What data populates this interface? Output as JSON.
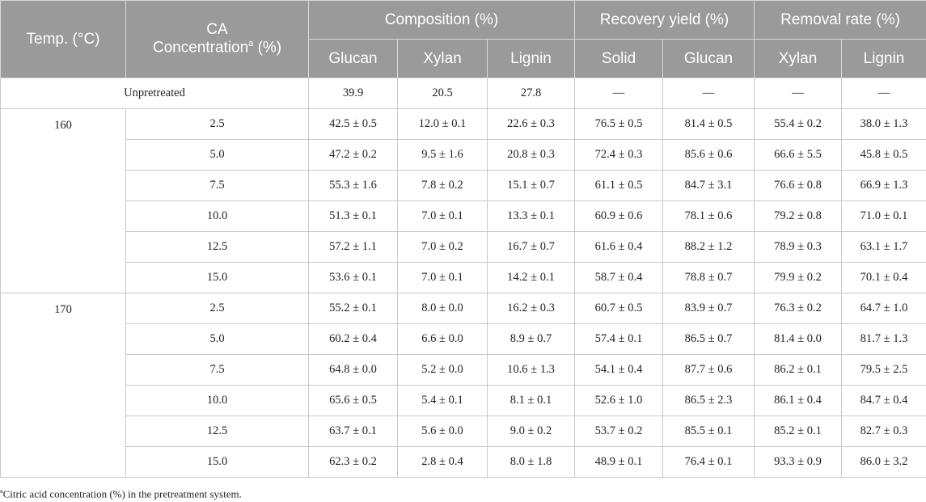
{
  "header": {
    "temp": "Temp. (°C)",
    "ca": "CA",
    "ca2": "Concentration",
    "ca_sup": "a",
    "ca_unit": " (%)",
    "composition": "Composition (%)",
    "recovery": "Recovery yield (%)",
    "removal": "Removal rate (%)",
    "sub": [
      "Glucan",
      "Xylan",
      "Lignin",
      "Solid",
      "Glucan",
      "Xylan",
      "Lignin"
    ]
  },
  "unpretreated": {
    "label": "Unpretreated",
    "values": [
      "39.9",
      "20.5",
      "27.8",
      "—",
      "—",
      "—",
      "—"
    ]
  },
  "groups": [
    {
      "temp": "160",
      "rows": [
        {
          "conc": "2.5",
          "values": [
            "42.5 ± 0.5",
            "12.0 ± 0.1",
            "22.6 ± 0.3",
            "76.5 ± 0.5",
            "81.4 ± 0.5",
            "55.4 ± 0.2",
            "38.0 ± 1.3"
          ]
        },
        {
          "conc": "5.0",
          "values": [
            "47.2 ± 0.2",
            "9.5 ± 1.6",
            "20.8 ± 0.3",
            "72.4 ± 0.3",
            "85.6 ± 0.6",
            "66.6 ± 5.5",
            "45.8 ± 0.5"
          ]
        },
        {
          "conc": "7.5",
          "values": [
            "55.3 ± 1.6",
            "7.8 ± 0.2",
            "15.1 ± 0.7",
            "61.1 ± 0.5",
            "84.7 ± 3.1",
            "76.6 ± 0.8",
            "66.9 ± 1.3"
          ]
        },
        {
          "conc": "10.0",
          "values": [
            "51.3 ± 0.1",
            "7.0 ± 0.1",
            "13.3 ± 0.1",
            "60.9 ± 0.6",
            "78.1 ± 0.6",
            "79.2 ± 0.8",
            "71.0 ± 0.1"
          ]
        },
        {
          "conc": "12.5",
          "values": [
            "57.2 ± 1.1",
            "7.0 ± 0.2",
            "16.7 ± 0.7",
            "61.6 ± 0.4",
            "88.2 ± 1.2",
            "78.9 ± 0.3",
            "63.1 ± 1.7"
          ]
        },
        {
          "conc": "15.0",
          "values": [
            "53.6 ± 0.1",
            "7.0 ± 0.1",
            "14.2 ± 0.1",
            "58.7 ± 0.4",
            "78.8 ± 0.7",
            "79.9 ± 0.2",
            "70.1 ± 0.4"
          ]
        }
      ]
    },
    {
      "temp": "170",
      "rows": [
        {
          "conc": "2.5",
          "values": [
            "55.2 ± 0.1",
            "8.0 ± 0.0",
            "16.2 ± 0.3",
            "60.7 ± 0.5",
            "83.9 ± 0.7",
            "76.3 ± 0.2",
            "64.7 ± 1.0"
          ]
        },
        {
          "conc": "5.0",
          "values": [
            "60.2 ± 0.4",
            "6.6 ± 0.0",
            "8.9 ± 0.7",
            "57.4 ± 0.1",
            "86.5 ± 0.7",
            "81.4 ± 0.0",
            "81.7 ± 1.3"
          ]
        },
        {
          "conc": "7.5",
          "values": [
            "64.8 ± 0.0",
            "5.2 ± 0.0",
            "10.6 ± 1.3",
            "54.1 ± 0.4",
            "87.7 ± 0.6",
            "86.2 ± 0.1",
            "79.5 ± 2.5"
          ]
        },
        {
          "conc": "10.0",
          "values": [
            "65.6 ± 0.5",
            "5.4 ± 0.1",
            "8.1 ± 0.1",
            "52.6 ± 1.0",
            "86.5 ± 2.3",
            "86.1 ± 0.4",
            "84.7 ± 0.4"
          ]
        },
        {
          "conc": "12.5",
          "values": [
            "63.7 ± 0.1",
            "5.6 ± 0.0",
            "9.0 ± 0.2",
            "53.7 ± 0.2",
            "85.5 ± 0.1",
            "85.2 ± 0.1",
            "82.7 ± 0.3"
          ]
        },
        {
          "conc": "15.0",
          "values": [
            "62.3 ± 0.2",
            "2.8 ± 0.4",
            "8.0 ± 1.8",
            "48.9 ± 0.1",
            "76.4 ± 0.1",
            "93.3 ± 0.9",
            "86.0 ± 3.2"
          ]
        }
      ]
    }
  ],
  "footnote": {
    "sup": "a",
    "text": "Citric acid concentration (%) in the pretreatment system."
  }
}
